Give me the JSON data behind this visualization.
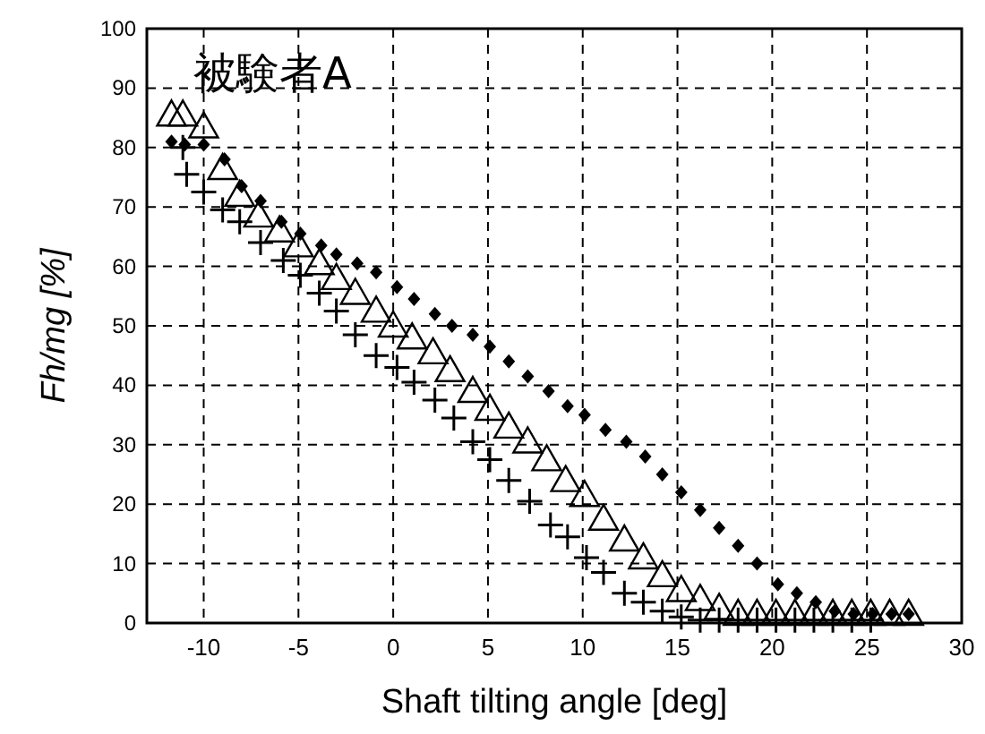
{
  "chart_data": {
    "type": "scatter",
    "title": "被験者A",
    "xlabel": "Shaft tilting angle [deg]",
    "ylabel": "Fh/mg [%]",
    "xlim": [
      -13,
      30
    ],
    "ylim": [
      0,
      100
    ],
    "xticks": [
      -10,
      -5,
      0,
      5,
      10,
      15,
      20,
      25,
      30
    ],
    "yticks": [
      0,
      10,
      20,
      30,
      40,
      50,
      60,
      70,
      80,
      90,
      100
    ],
    "grid": true,
    "series": [
      {
        "color": "#000000",
        "marker": "diamond",
        "x": [
          -11.7,
          -11,
          -10,
          -8.9,
          -8,
          -7,
          -5.9,
          -4.9,
          -3.8,
          -3,
          -1.9,
          -0.9,
          0.2,
          1.1,
          2.2,
          3.1,
          4.2,
          5.1,
          6.1,
          7.1,
          8.2,
          9.2,
          10.1,
          11.2,
          12.3,
          13.3,
          14.2,
          15.2,
          16.2,
          17.2,
          18.2,
          19.2,
          20.3,
          21.3,
          22.3,
          23.3,
          24.3,
          25.3,
          26.3,
          27.2
        ],
        "values": [
          81,
          80.5,
          80.5,
          78,
          73.5,
          71,
          67.5,
          65.5,
          63.5,
          62,
          60.5,
          59,
          56.5,
          54.5,
          52,
          50,
          48.5,
          46.5,
          44,
          41.5,
          39,
          36.5,
          35,
          32.5,
          30.5,
          28,
          25,
          22,
          19,
          16,
          13,
          10,
          6.5,
          5,
          3.5,
          2,
          1.5,
          1.5,
          1.5,
          1.5
        ]
      },
      {
        "color": "#000000",
        "marker": "triangle",
        "x": [
          -11.7,
          -11.1,
          -10,
          -9,
          -8.1,
          -7.1,
          -6,
          -5,
          -3.9,
          -3,
          -2,
          -0.9,
          0,
          1,
          2.1,
          3,
          4.2,
          5.1,
          6.1,
          7.1,
          8.1,
          9.1,
          10.1,
          11.1,
          12.2,
          13.2,
          14.2,
          15.2,
          16.2,
          17.2,
          18.2,
          19.2,
          20.2,
          21.2,
          22.2,
          23.2,
          24.2,
          25.2,
          26.2,
          27.2
        ],
        "values": [
          85.5,
          85.5,
          83.5,
          76.5,
          72,
          68.5,
          66,
          63.5,
          60.5,
          58,
          55.5,
          52.5,
          50,
          48,
          45.5,
          42.5,
          39,
          36,
          33,
          30.5,
          27.5,
          24,
          21.5,
          17.5,
          14,
          11,
          8,
          5.5,
          4,
          2.5,
          1.5,
          1.5,
          1.5,
          1.5,
          1.5,
          1.5,
          1.5,
          1.5,
          1.5,
          1.5
        ]
      },
      {
        "color": "#000000",
        "marker": "cross",
        "x": [
          -11.1,
          -10.9,
          -10,
          -9,
          -8.1,
          -7,
          -5.8,
          -4.9,
          -3.9,
          -3,
          -2,
          -0.9,
          0.2,
          1.1,
          2.2,
          3.2,
          4.2,
          5.1,
          6.1,
          7.2,
          8.3,
          9.2,
          10.2,
          11.1,
          12.2,
          13.2,
          14.2,
          15.2,
          16.2,
          17.2,
          18.2,
          19.2,
          20.2,
          21.2,
          22.2,
          23.2,
          24.2,
          25.2
        ],
        "values": [
          80,
          75.5,
          72.5,
          69.5,
          67.5,
          64,
          61,
          58.5,
          55.5,
          52.5,
          48.5,
          45,
          43,
          40.5,
          37.5,
          34.5,
          30.5,
          27.5,
          24,
          20.5,
          16.5,
          14.5,
          11,
          8.5,
          5,
          3.5,
          2,
          1,
          0.5,
          0.5,
          0.5,
          0.5,
          0.5,
          0.5,
          0.5,
          0.5,
          0.5,
          0.5
        ]
      }
    ]
  }
}
